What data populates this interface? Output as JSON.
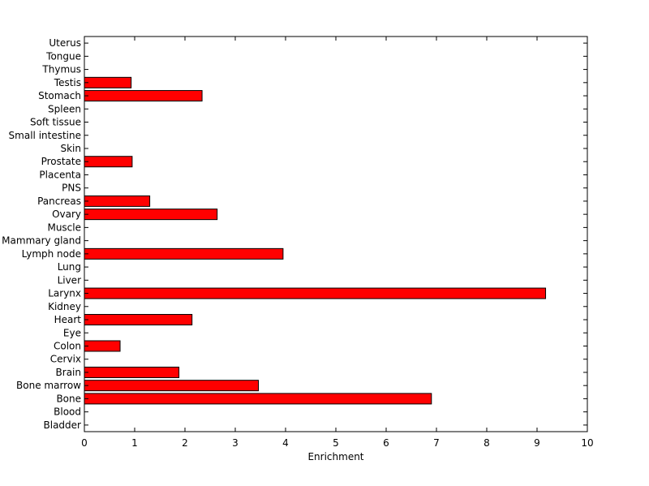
{
  "chart_data": {
    "type": "bar",
    "orientation": "horizontal",
    "categories": [
      "Bladder",
      "Blood",
      "Bone",
      "Bone marrow",
      "Brain",
      "Cervix",
      "Colon",
      "Eye",
      "Heart",
      "Kidney",
      "Larynx",
      "Liver",
      "Lung",
      "Lymph node",
      "Mammary gland",
      "Muscle",
      "Ovary",
      "Pancreas",
      "PNS",
      "Placenta",
      "Prostate",
      "Skin",
      "Small intestine",
      "Soft tissue",
      "Spleen",
      "Stomach",
      "Testis",
      "Thymus",
      "Tongue",
      "Uterus"
    ],
    "values": [
      0,
      0,
      6.9,
      3.46,
      1.88,
      0,
      0.71,
      0,
      2.14,
      0,
      9.17,
      0,
      0,
      3.95,
      0,
      0,
      2.64,
      1.3,
      0,
      0,
      0.95,
      0,
      0,
      0,
      0,
      2.34,
      0.93,
      0,
      0,
      0
    ],
    "title": "",
    "xlabel": "Enrichment",
    "ylabel": "",
    "xlim": [
      0,
      10
    ],
    "xticks": [
      "0",
      "1",
      "2",
      "3",
      "4",
      "5",
      "6",
      "7",
      "8",
      "9",
      "10"
    ],
    "grid": false,
    "bar_color": "#ff0000",
    "bar_edge_color": "#000000"
  }
}
